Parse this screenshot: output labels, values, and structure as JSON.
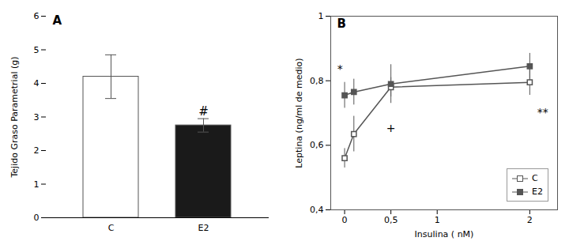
{
  "chart_data": [
    {
      "type": "bar",
      "title": "A",
      "categories": [
        "C",
        "E2"
      ],
      "values": [
        4.2,
        2.75
      ],
      "errors": [
        0.65,
        0.2
      ],
      "colors": [
        "white",
        "#1a1a1a"
      ],
      "ylabel": "Tejido Graso Parametrial (g)",
      "ylim": [
        0,
        6
      ],
      "yticks": [
        0,
        1,
        2,
        3,
        4,
        5,
        6
      ],
      "annotations": [
        {
          "text": "#",
          "x": "E2",
          "y": 3.05
        }
      ]
    },
    {
      "type": "line",
      "title": "B",
      "x": [
        0,
        0.1,
        0.5,
        2
      ],
      "series": [
        {
          "name": "C",
          "color": "#555555",
          "marker": "square_open",
          "values": [
            0.56,
            0.635,
            0.78,
            0.795
          ],
          "errors": [
            0.03,
            0.055,
            0.03,
            0.04
          ]
        },
        {
          "name": "E2",
          "color": "#555555",
          "marker": "square",
          "values": [
            0.755,
            0.765,
            0.79,
            0.845
          ],
          "errors": [
            0.04,
            0.04,
            0.06,
            0.04
          ]
        }
      ],
      "xlabel": "Insulina ( nM)",
      "ylabel": "Leptina (ng/ml de medio)",
      "xlim": [
        -0.15,
        2.3
      ],
      "xticks": [
        0,
        {
          "value": 0.5,
          "label": "0,5"
        },
        1,
        2
      ],
      "ylim": [
        0.4,
        1
      ],
      "yticks": [
        {
          "value": 0.4,
          "label": "0,4"
        },
        {
          "value": 0.6,
          "label": "0,6"
        },
        {
          "value": 0.8,
          "label": "0,8"
        },
        1
      ],
      "legend": "lower right",
      "annotations": [
        {
          "text": "*",
          "x": -0.02,
          "y": 0.835
        },
        {
          "text": "+",
          "x": 0.5,
          "y": 0.665
        },
        {
          "text": "**",
          "x": 2.08,
          "y": 0.715
        }
      ]
    }
  ]
}
